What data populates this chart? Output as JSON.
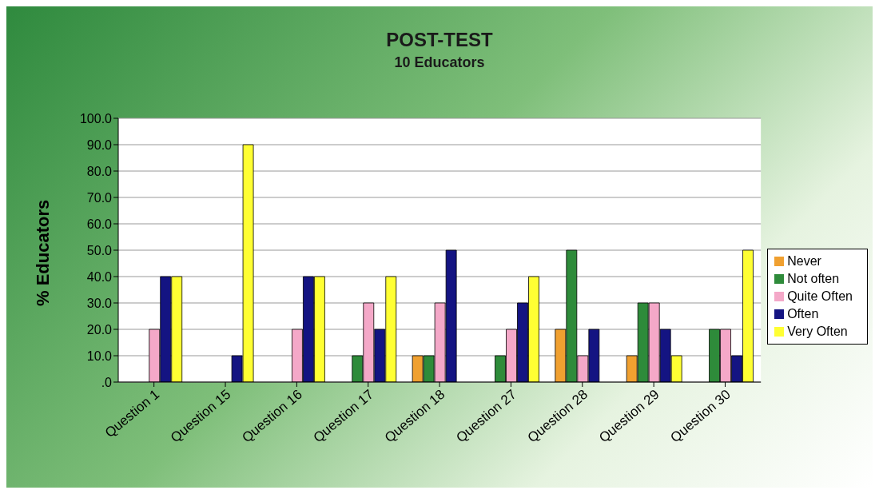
{
  "chart_data": {
    "type": "bar",
    "title": "POST-TEST",
    "subtitle": "10 Educators",
    "ylabel": "% Educators",
    "categories": [
      "Question 1",
      "Question 15",
      "Question 16",
      "Question 17",
      "Question 18",
      "Question 27",
      "Question 28",
      "Question 29",
      "Question 30"
    ],
    "series": [
      {
        "name": "Never",
        "color": "#f0a030",
        "values": [
          0,
          0,
          0,
          0,
          10,
          0,
          20,
          10,
          0
        ]
      },
      {
        "name": "Not often",
        "color": "#2e8b3a",
        "values": [
          0,
          0,
          0,
          10,
          10,
          10,
          50,
          30,
          20
        ]
      },
      {
        "name": "Quite Often",
        "color": "#f4a8c8",
        "values": [
          20,
          0,
          20,
          30,
          30,
          20,
          10,
          30,
          20
        ]
      },
      {
        "name": "Often",
        "color": "#141482",
        "values": [
          40,
          10,
          40,
          20,
          50,
          30,
          20,
          20,
          10
        ]
      },
      {
        "name": "Very Often",
        "color": "#ffff33",
        "values": [
          40,
          90,
          40,
          40,
          0,
          40,
          0,
          10,
          50
        ]
      }
    ],
    "ylim": [
      0,
      100
    ],
    "yticks": [
      {
        "value": 0,
        "label": ".0"
      },
      {
        "value": 10,
        "label": "10.0"
      },
      {
        "value": 20,
        "label": "20.0"
      },
      {
        "value": 30,
        "label": "30.0"
      },
      {
        "value": 40,
        "label": "40.0"
      },
      {
        "value": 50,
        "label": "50.0"
      },
      {
        "value": 60,
        "label": "60.0"
      },
      {
        "value": 70,
        "label": "70.0"
      },
      {
        "value": 80,
        "label": "80.0"
      },
      {
        "value": 90,
        "label": "90.0"
      },
      {
        "value": 100,
        "label": "100.0"
      }
    ],
    "grid": "y",
    "legend": "right"
  }
}
